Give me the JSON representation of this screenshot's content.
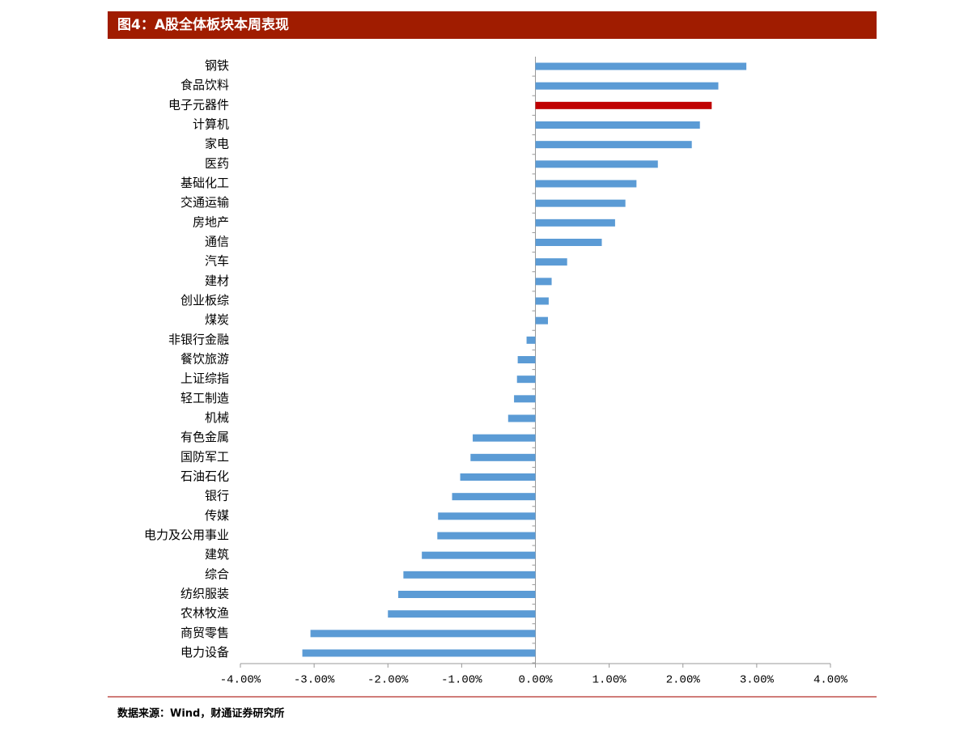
{
  "chart_data": {
    "type": "barh",
    "title": "图4：A股全体板块本周表现",
    "source": "数据来源：Wind，财通证券研究所",
    "categories": [
      "钢铁",
      "食品饮料",
      "电子元器件",
      "计算机",
      "家电",
      "医药",
      "基础化工",
      "交通运输",
      "房地产",
      "通信",
      "汽车",
      "建材",
      "创业板综",
      "煤炭",
      "非银行金融",
      "餐饮旅游",
      "上证综指",
      "轻工制造",
      "机械",
      "有色金属",
      "国防军工",
      "石油石化",
      "银行",
      "传媒",
      "电力及公用事业",
      "建筑",
      "综合",
      "纺织服装",
      "农林牧渔",
      "商贸零售",
      "电力设备"
    ],
    "values": [
      2.86,
      2.48,
      2.39,
      2.23,
      2.12,
      1.66,
      1.37,
      1.22,
      1.08,
      0.9,
      0.43,
      0.22,
      0.18,
      0.17,
      -0.12,
      -0.24,
      -0.25,
      -0.29,
      -0.37,
      -0.85,
      -0.88,
      -1.02,
      -1.13,
      -1.32,
      -1.33,
      -1.54,
      -1.79,
      -1.86,
      -2.0,
      -3.05,
      -3.16
    ],
    "colors": [
      "#5b9bd5",
      "#5b9bd5",
      "#c00000",
      "#5b9bd5",
      "#5b9bd5",
      "#5b9bd5",
      "#5b9bd5",
      "#5b9bd5",
      "#5b9bd5",
      "#5b9bd5",
      "#5b9bd5",
      "#5b9bd5",
      "#5b9bd5",
      "#5b9bd5",
      "#5b9bd5",
      "#5b9bd5",
      "#5b9bd5",
      "#5b9bd5",
      "#5b9bd5",
      "#5b9bd5",
      "#5b9bd5",
      "#5b9bd5",
      "#5b9bd5",
      "#5b9bd5",
      "#5b9bd5",
      "#5b9bd5",
      "#5b9bd5",
      "#5b9bd5",
      "#5b9bd5",
      "#5b9bd5",
      "#5b9bd5"
    ],
    "xlim": [
      -4,
      4
    ],
    "xticks": [
      {
        "value": -4,
        "label": "-4.00%"
      },
      {
        "value": -3,
        "label": "-3.00%"
      },
      {
        "value": -2,
        "label": "-2.00%"
      },
      {
        "value": -1,
        "label": "-1.00%"
      },
      {
        "value": 0,
        "label": "0.00%"
      },
      {
        "value": 1,
        "label": "1.00%"
      },
      {
        "value": 2,
        "label": "2.00%"
      },
      {
        "value": 3,
        "label": "3.00%"
      },
      {
        "value": 4,
        "label": "4.00%"
      }
    ],
    "grid": false
  }
}
